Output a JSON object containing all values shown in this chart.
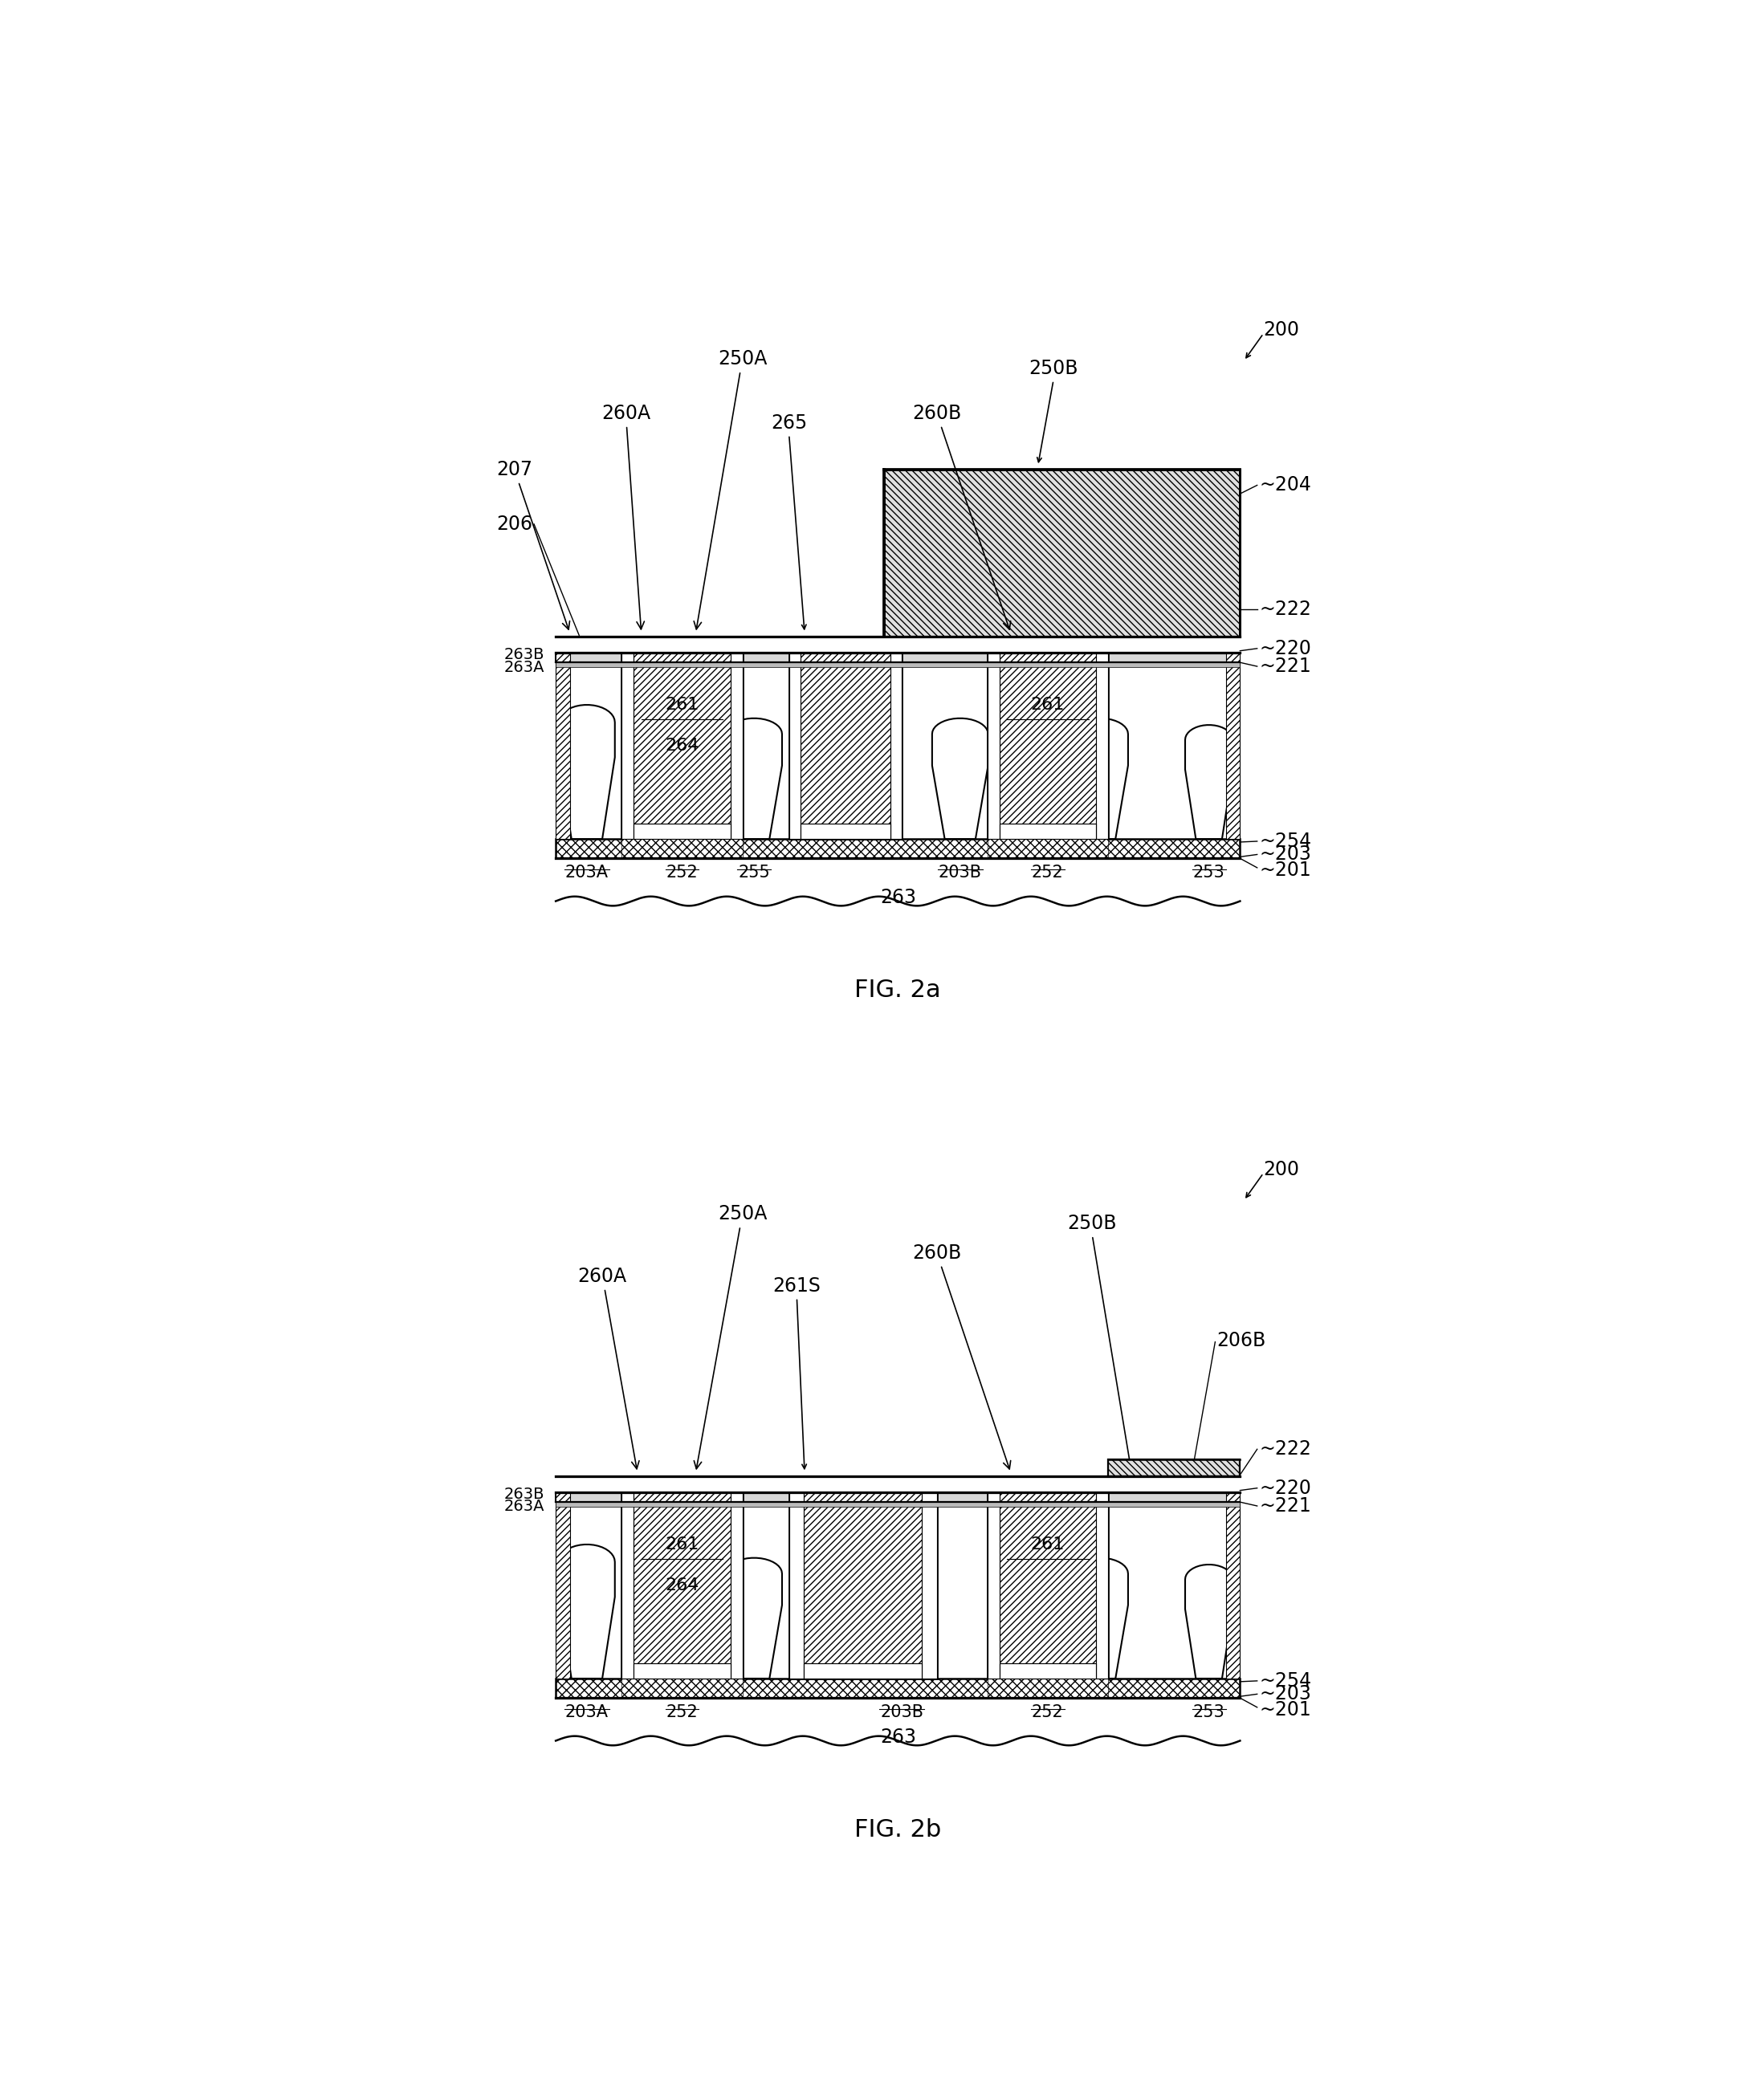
{
  "bg_color": "#ffffff",
  "lc": "#000000",
  "lw": 1.8,
  "fs": 17,
  "fs_cap": 22,
  "fig2a": "FIG. 2a",
  "fig2b": "FIG. 2b",
  "labels": {
    "200": "200",
    "201": "~201",
    "203": "~203",
    "203A": "203A",
    "203B": "203B",
    "204": "~204",
    "206": "206",
    "206B": "206B",
    "207": "207",
    "220": "~220",
    "221": "~221",
    "222": "~222",
    "250A": "250A",
    "250B": "250B",
    "252": "252",
    "253": "253",
    "254": "~254",
    "255": "255",
    "260A": "260A",
    "260B": "260B",
    "261": "261",
    "261S": "261S",
    "263": "263",
    "263A": "263A",
    "263B": "263B",
    "264": "264",
    "265": "265"
  }
}
